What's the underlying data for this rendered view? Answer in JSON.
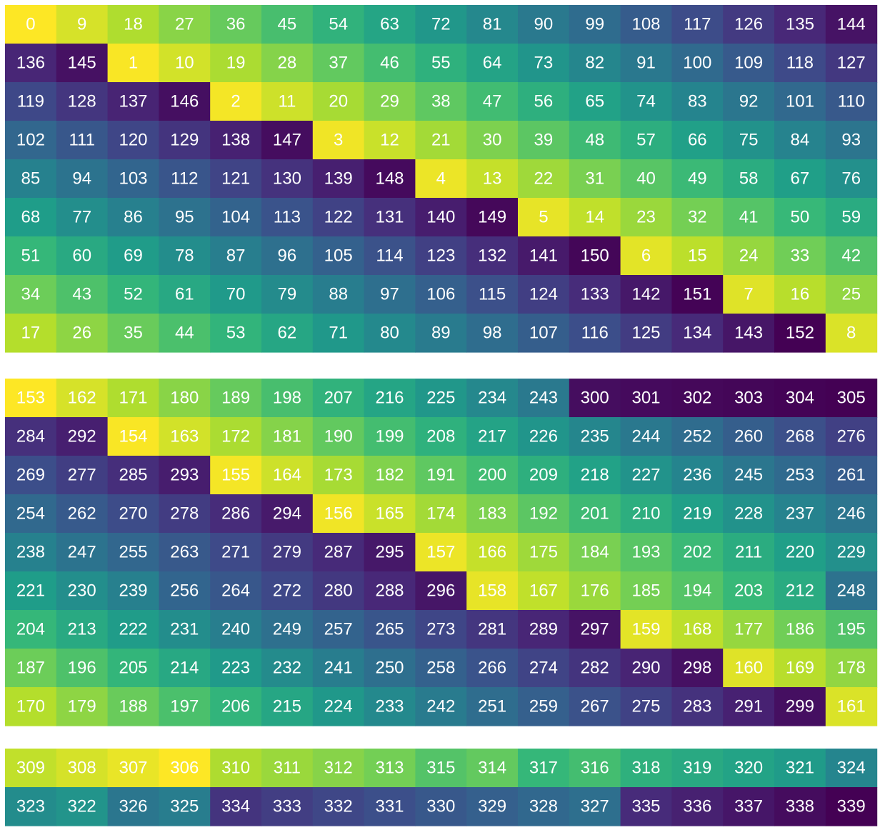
{
  "chart_data": [
    {
      "type": "heatmap",
      "rows": 9,
      "cols": 17,
      "values": [
        [
          0,
          9,
          18,
          27,
          36,
          45,
          54,
          63,
          72,
          81,
          90,
          99,
          108,
          117,
          126,
          135,
          144
        ],
        [
          136,
          145,
          1,
          10,
          19,
          28,
          37,
          46,
          55,
          64,
          73,
          82,
          91,
          100,
          109,
          118,
          127
        ],
        [
          119,
          128,
          137,
          146,
          2,
          11,
          20,
          29,
          38,
          47,
          56,
          65,
          74,
          83,
          92,
          101,
          110
        ],
        [
          102,
          111,
          120,
          129,
          138,
          147,
          3,
          12,
          21,
          30,
          39,
          48,
          57,
          66,
          75,
          84,
          93
        ],
        [
          85,
          94,
          103,
          112,
          121,
          130,
          139,
          148,
          4,
          13,
          22,
          31,
          40,
          49,
          58,
          67,
          76
        ],
        [
          68,
          77,
          86,
          95,
          104,
          113,
          122,
          131,
          140,
          149,
          5,
          14,
          23,
          32,
          41,
          50,
          59
        ],
        [
          51,
          60,
          69,
          78,
          87,
          96,
          105,
          114,
          123,
          132,
          141,
          150,
          6,
          15,
          24,
          33,
          42
        ],
        [
          34,
          43,
          52,
          61,
          70,
          79,
          88,
          97,
          106,
          115,
          124,
          133,
          142,
          151,
          7,
          16,
          25
        ],
        [
          17,
          26,
          35,
          44,
          53,
          62,
          71,
          80,
          89,
          98,
          107,
          116,
          125,
          134,
          143,
          152,
          8
        ]
      ],
      "colormap": "viridis",
      "color_order": "reversed",
      "grid": false
    },
    {
      "type": "heatmap",
      "rows": 9,
      "cols": 17,
      "values": [
        [
          153,
          162,
          171,
          180,
          189,
          198,
          207,
          216,
          225,
          234,
          243,
          300,
          301,
          302,
          303,
          304,
          305
        ],
        [
          284,
          292,
          154,
          163,
          172,
          181,
          190,
          199,
          208,
          217,
          226,
          235,
          244,
          252,
          260,
          268,
          276
        ],
        [
          269,
          277,
          285,
          293,
          155,
          164,
          173,
          182,
          191,
          200,
          209,
          218,
          227,
          236,
          245,
          253,
          261
        ],
        [
          254,
          262,
          270,
          278,
          286,
          294,
          156,
          165,
          174,
          183,
          192,
          201,
          210,
          219,
          228,
          237,
          246
        ],
        [
          238,
          247,
          255,
          263,
          271,
          279,
          287,
          295,
          157,
          166,
          175,
          184,
          193,
          202,
          211,
          220,
          229
        ],
        [
          221,
          230,
          239,
          256,
          264,
          272,
          280,
          288,
          296,
          158,
          167,
          176,
          185,
          194,
          203,
          212,
          248
        ],
        [
          204,
          213,
          222,
          231,
          240,
          249,
          257,
          265,
          273,
          281,
          289,
          297,
          159,
          168,
          177,
          186,
          195
        ],
        [
          187,
          196,
          205,
          214,
          223,
          232,
          241,
          250,
          258,
          266,
          274,
          282,
          290,
          298,
          160,
          169,
          178
        ],
        [
          170,
          179,
          188,
          197,
          206,
          215,
          224,
          233,
          242,
          251,
          259,
          267,
          275,
          283,
          291,
          299,
          161
        ]
      ],
      "colormap": "viridis",
      "color_order": "reversed",
      "grid": false
    },
    {
      "type": "heatmap",
      "rows": 2,
      "cols": 17,
      "values": [
        [
          309,
          308,
          307,
          306,
          310,
          311,
          312,
          313,
          315,
          314,
          317,
          316,
          318,
          319,
          320,
          321,
          324
        ],
        [
          323,
          322,
          326,
          325,
          334,
          333,
          332,
          331,
          330,
          329,
          328,
          327,
          335,
          336,
          337,
          338,
          339
        ]
      ],
      "colormap": "viridis",
      "color_order": "reversed",
      "grid": false
    }
  ]
}
